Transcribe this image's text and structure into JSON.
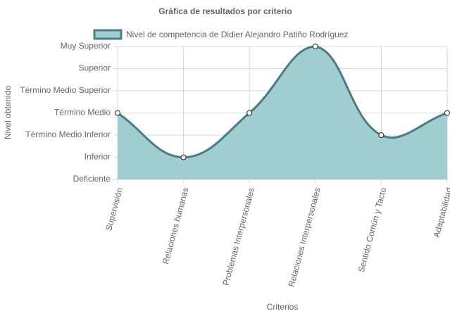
{
  "chart_data": {
    "type": "line",
    "title": "Gráfica de resultados por criterio",
    "y_label": "Nivel obtenido",
    "x_label": "Criterios",
    "categories": [
      "Supervisión",
      "Relaciones humanas",
      "Problemas Interpersonales",
      "Relaciones Interpersonales",
      "Sentido Común y Tacto",
      "Adaptabilidad"
    ],
    "series": [
      {
        "name": "Nivel de competencia de Didier Alejandro Patiño Rodríguez",
        "color": "#4e7b83",
        "fill": "#a0cdd0",
        "values": [
          3,
          1,
          3,
          6,
          2,
          3
        ]
      }
    ],
    "ylim": [
      0,
      6
    ],
    "yticks": [
      {
        "value": 0,
        "label": "Deficiente"
      },
      {
        "value": 1,
        "label": "Inferior"
      },
      {
        "value": 2,
        "label": "Término Medio Inferior"
      },
      {
        "value": 3,
        "label": "Término Medio"
      },
      {
        "value": 4,
        "label": "Término Medio Superior"
      },
      {
        "value": 5,
        "label": "Superior"
      },
      {
        "value": 6,
        "label": "Muy Superior"
      }
    ],
    "grid": true
  }
}
